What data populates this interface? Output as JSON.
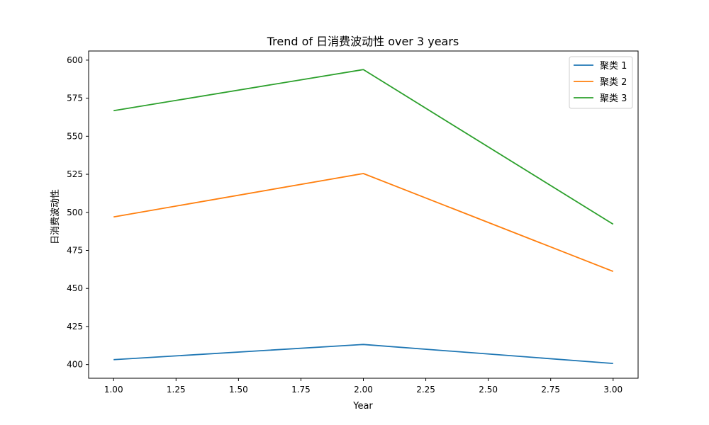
{
  "chart_data": {
    "type": "line",
    "title": "Trend of 日消费波动性 over 3 years",
    "xlabel": "Year",
    "ylabel": "日消费波动性",
    "x": [
      1.0,
      2.0,
      3.0
    ],
    "xlim": [
      0.9,
      3.1
    ],
    "ylim": [
      391,
      606
    ],
    "xticks": [
      1.0,
      1.25,
      1.5,
      1.75,
      2.0,
      2.25,
      2.5,
      2.75,
      3.0
    ],
    "xtick_labels": [
      "1.00",
      "1.25",
      "1.50",
      "1.75",
      "2.00",
      "2.25",
      "2.50",
      "2.75",
      "3.00"
    ],
    "yticks": [
      400,
      425,
      450,
      475,
      500,
      525,
      550,
      575,
      600
    ],
    "ytick_labels": [
      "400",
      "425",
      "450",
      "475",
      "500",
      "525",
      "550",
      "575",
      "600"
    ],
    "grid": false,
    "legend_position": "top-right",
    "series": [
      {
        "name": "聚类 1",
        "color": "#1f77b4",
        "values": [
          403.2,
          413.2,
          400.7
        ]
      },
      {
        "name": "聚类 2",
        "color": "#ff7f0e",
        "values": [
          497.0,
          525.5,
          461.2
        ]
      },
      {
        "name": "聚类 3",
        "color": "#2ca02c",
        "values": [
          566.8,
          593.8,
          492.2
        ]
      }
    ]
  }
}
